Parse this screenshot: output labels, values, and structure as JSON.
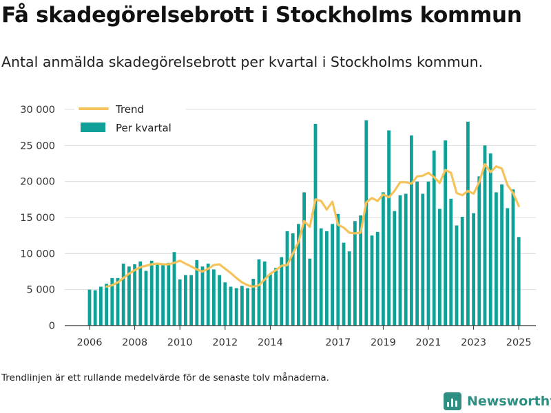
{
  "title": "Få skadegörelsebrott i Stockholms kommun",
  "subtitle": "Antal anmälda skadegörelsebrott per kvartal i Stockholms kommun.",
  "footnote": "Trendlinjen är ett rullande medelvärde för de senaste tolv månaderna.",
  "brand": {
    "name": "Newsworthy",
    "color": "#2f8f83",
    "icon": "bar-chart-logo-icon"
  },
  "legend": {
    "trend_label": "Trend",
    "bars_label": "Per kvartal"
  },
  "colors": {
    "bars": "#0fa197",
    "trend": "#f6c25a",
    "grid": "#dddddd",
    "axis": "#333333"
  },
  "chart_data": {
    "type": "bar",
    "ylim": [
      0,
      30000
    ],
    "y_ticks": [
      0,
      5000,
      10000,
      15000,
      20000,
      25000,
      30000
    ],
    "y_tick_labels": [
      "0",
      "5 000",
      "10 000",
      "15 000",
      "20 000",
      "25 000",
      "30 000"
    ],
    "x_tick_labels": [
      "2006",
      "2008",
      "2010",
      "2012",
      "2014",
      "2017",
      "2019",
      "2021",
      "2023",
      "2025"
    ],
    "x_tick_positions": [
      0,
      8,
      16,
      24,
      32,
      44,
      52,
      60,
      68,
      76
    ],
    "grid": true,
    "legend_position": "top-left",
    "series": [
      {
        "name": "Per kvartal",
        "kind": "bar",
        "values": [
          5000,
          4900,
          5400,
          5800,
          6600,
          6600,
          8600,
          8200,
          8500,
          8900,
          7600,
          9000,
          8600,
          8500,
          8700,
          10200,
          6400,
          7000,
          7000,
          9100,
          8200,
          8600,
          7800,
          7000,
          6000,
          5400,
          5200,
          5500,
          5200,
          6500,
          9200,
          8900,
          7100,
          8000,
          9500,
          13100,
          12800,
          14100,
          18500,
          9300,
          28000,
          13500,
          13100,
          14100,
          15500,
          11500,
          10300,
          14500,
          15300,
          28500,
          12500,
          13000,
          18500,
          27100,
          15900,
          18100,
          18300,
          26400,
          20000,
          18300,
          20000,
          24300,
          16200,
          25700,
          17600,
          13900,
          15100,
          28300,
          15600,
          20700,
          25000,
          23900,
          18500,
          19600,
          16300,
          18900,
          12300
        ]
      },
      {
        "name": "Trend",
        "kind": "line",
        "values": [
          null,
          null,
          null,
          5400,
          5600,
          6000,
          6600,
          7200,
          7700,
          8100,
          8300,
          8500,
          8600,
          8500,
          8500,
          8700,
          9000,
          8600,
          8200,
          7800,
          7500,
          7900,
          8400,
          8500,
          7900,
          7300,
          6600,
          6000,
          5600,
          5400,
          5600,
          6400,
          7200,
          7700,
          8300,
          8400,
          10000,
          11600,
          14500,
          13700,
          17500,
          17300,
          16100,
          17200,
          14000,
          13600,
          12900,
          12800,
          12900,
          17100,
          17700,
          17300,
          18200,
          17800,
          18700,
          19900,
          19900,
          19700,
          20700,
          20800,
          21200,
          20600,
          19800,
          21600,
          21200,
          18400,
          18100,
          18700,
          18300,
          19900,
          22400,
          21300,
          22100,
          21800,
          19500,
          18400,
          16600
        ]
      }
    ]
  }
}
